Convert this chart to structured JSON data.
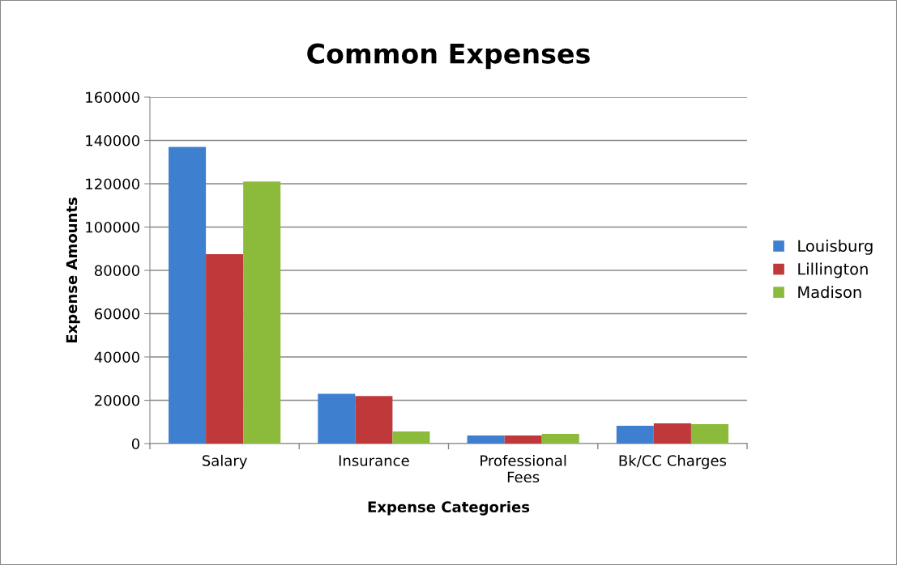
{
  "chart_data": {
    "type": "bar",
    "title": "Common Expenses",
    "xlabel": "Expense Categories",
    "ylabel": "Expense Amounts",
    "categories": [
      "Salary",
      "Insurance",
      "Professional Fees",
      "Bk/CC Charges"
    ],
    "series": [
      {
        "name": "Louisburg",
        "color": "#3f7fd0",
        "values": [
          137000,
          23000,
          3700,
          8200
        ]
      },
      {
        "name": "Lillington",
        "color": "#c0393a",
        "values": [
          87500,
          22000,
          3700,
          9300
        ]
      },
      {
        "name": "Madison",
        "color": "#8cbb3c",
        "values": [
          121000,
          5600,
          4500,
          9000
        ]
      }
    ],
    "ylim": [
      0,
      160000
    ],
    "yticks": [
      0,
      20000,
      40000,
      60000,
      80000,
      100000,
      120000,
      140000,
      160000
    ],
    "grid": "y",
    "legend": "right"
  }
}
